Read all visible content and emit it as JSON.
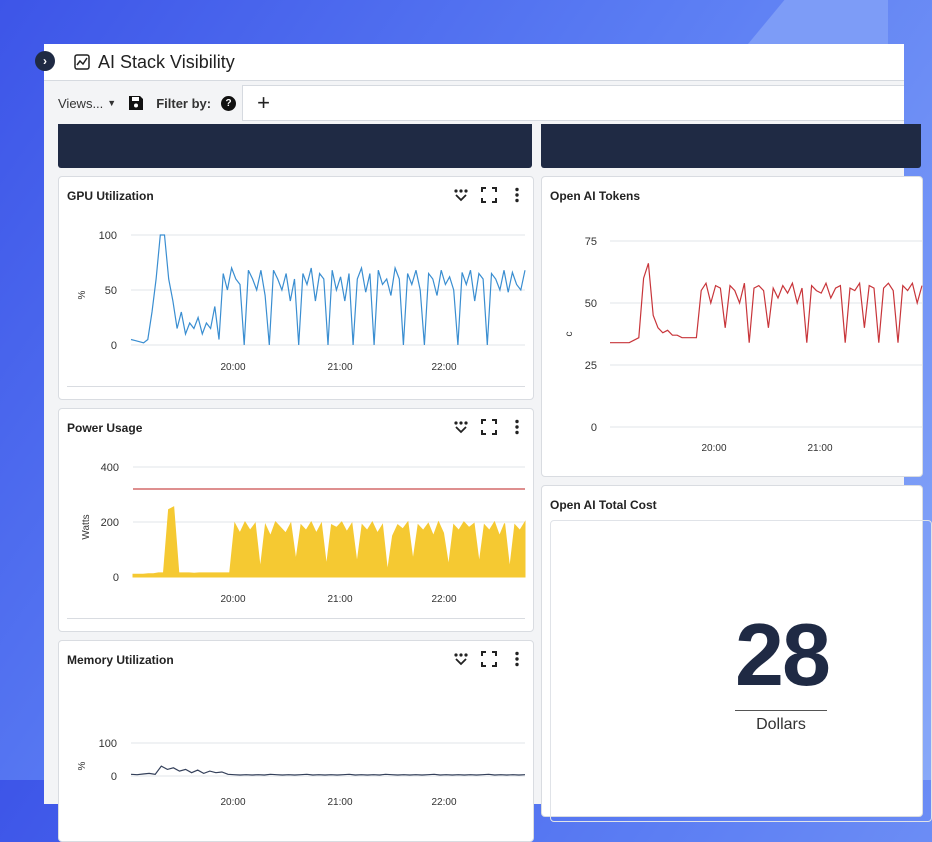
{
  "app": {
    "title": "AI Stack Visibility",
    "toolbar": {
      "views_label": "Views...",
      "filter_label": "Filter by:",
      "add_filter": "+"
    }
  },
  "icons": [
    "chevron-right-icon",
    "chart-icon",
    "caret-down-icon",
    "save-icon",
    "help-icon",
    "plus-icon",
    "filter-hearts-icon",
    "fullscreen-icon",
    "kebab-icon"
  ],
  "colors": {
    "navy": "#1f2a44",
    "gpu_line": "#3a8ed1",
    "tokens_line": "#c8353a",
    "power_fill": "#f5c932",
    "power_threshold": "#d46a6a",
    "memory_line": "#34405a"
  },
  "widgets": {
    "gpu": {
      "title": "GPU Utilization",
      "chart_data": {
        "type": "line",
        "title": "GPU Utilization",
        "ylabel": "%",
        "ylim": [
          0,
          100
        ],
        "yticks": [
          "100",
          "50",
          "0"
        ],
        "xticks": [
          "20:00",
          "21:00",
          "22:00"
        ],
        "series": [
          {
            "values": [
              5,
              4,
              3,
              2,
              5,
              30,
              60,
              100,
              100,
              60,
              40,
              15,
              30,
              10,
              20,
              15,
              25,
              10,
              20,
              15,
              35,
              5,
              65,
              50,
              70,
              60,
              55,
              0,
              68,
              60,
              50,
              68,
              45,
              0,
              68,
              60,
              50,
              65,
              40,
              60,
              0,
              65,
              55,
              70,
              40,
              65,
              60,
              0,
              68,
              50,
              62,
              40,
              65,
              0,
              60,
              70,
              48,
              65,
              0,
              68,
              55,
              60,
              45,
              70,
              60,
              0,
              65,
              55,
              68,
              50,
              0,
              65,
              60,
              45,
              68,
              55,
              62,
              50,
              0,
              66,
              55,
              68,
              40,
              65,
              60,
              0,
              65,
              60,
              50,
              68,
              48,
              66,
              55,
              50,
              68
            ]
          }
        ]
      }
    },
    "tokens": {
      "title": "Open AI Tokens",
      "chart_data": {
        "type": "line",
        "title": "Open AI Tokens",
        "ylabel": "c",
        "ylim": [
          0,
          75
        ],
        "yticks": [
          "75",
          "50",
          "25",
          "0"
        ],
        "xticks": [
          "20:00",
          "21:00"
        ],
        "series": [
          {
            "values": [
              34,
              34,
              34,
              34,
              34,
              35,
              36,
              60,
              66,
              45,
              40,
              38,
              39,
              37,
              37,
              36,
              36,
              36,
              36,
              55,
              58,
              50,
              57,
              56,
              40,
              57,
              55,
              50,
              58,
              34,
              56,
              57,
              55,
              40,
              56,
              52,
              57,
              54,
              58,
              50,
              56,
              34,
              57,
              55,
              54,
              58,
              52,
              56,
              57,
              34,
              56,
              55,
              58,
              40,
              57,
              56,
              34,
              56,
              58,
              55,
              34,
              57,
              55,
              58,
              50,
              57
            ]
          }
        ]
      }
    },
    "power": {
      "title": "Power Usage",
      "chart_data": {
        "type": "area",
        "title": "Power Usage",
        "ylabel": "Watts",
        "ylim": [
          0,
          400
        ],
        "yticks": [
          "400",
          "200",
          "0"
        ],
        "xticks": [
          "20:00",
          "21:00",
          "22:00"
        ],
        "threshold": 320,
        "series": [
          {
            "values": [
              10,
              10,
              10,
              12,
              12,
              15,
              15,
              245,
              255,
              15,
              15,
              15,
              14,
              15,
              15,
              15,
              15,
              15,
              15,
              15,
              195,
              160,
              200,
              170,
              195,
              30,
              190,
              150,
              200,
              180,
              160,
              195,
              60,
              190,
              170,
              200,
              160,
              195,
              40,
              190,
              180,
              200,
              165,
              195,
              50,
              190,
              170,
              200,
              160,
              190,
              20,
              150,
              190,
              175,
              200,
              60,
              190,
              170,
              195,
              150,
              200,
              160,
              40,
              190,
              170,
              200,
              180,
              195,
              50,
              190,
              170,
              200,
              150,
              195,
              30,
              190,
              170,
              200
            ]
          }
        ]
      }
    },
    "cost": {
      "title": "Open AI Total Cost",
      "value": "28",
      "unit": "Dollars"
    },
    "memory": {
      "title": "Memory Utilization",
      "chart_data": {
        "type": "line",
        "title": "Memory Utilization",
        "ylabel": "%",
        "ylim": [
          0,
          100
        ],
        "yticks": [
          "100",
          "0"
        ],
        "xticks": [
          "20:00",
          "21:00",
          "22:00"
        ],
        "series": [
          {
            "values": [
              5,
              4,
              6,
              8,
              5,
              30,
              20,
              25,
              15,
              20,
              10,
              18,
              8,
              15,
              10,
              12,
              5,
              4,
              3,
              4,
              3,
              4,
              3,
              5,
              4,
              3,
              4,
              3,
              4,
              5,
              3,
              4,
              3,
              4,
              3,
              4,
              5,
              3,
              4,
              3,
              4,
              3,
              5,
              4,
              3,
              4,
              3,
              4,
              3,
              4,
              5,
              3,
              4,
              3,
              4,
              3,
              4,
              3,
              4,
              5,
              3,
              4,
              3,
              4,
              3,
              4
            ]
          }
        ]
      }
    }
  }
}
